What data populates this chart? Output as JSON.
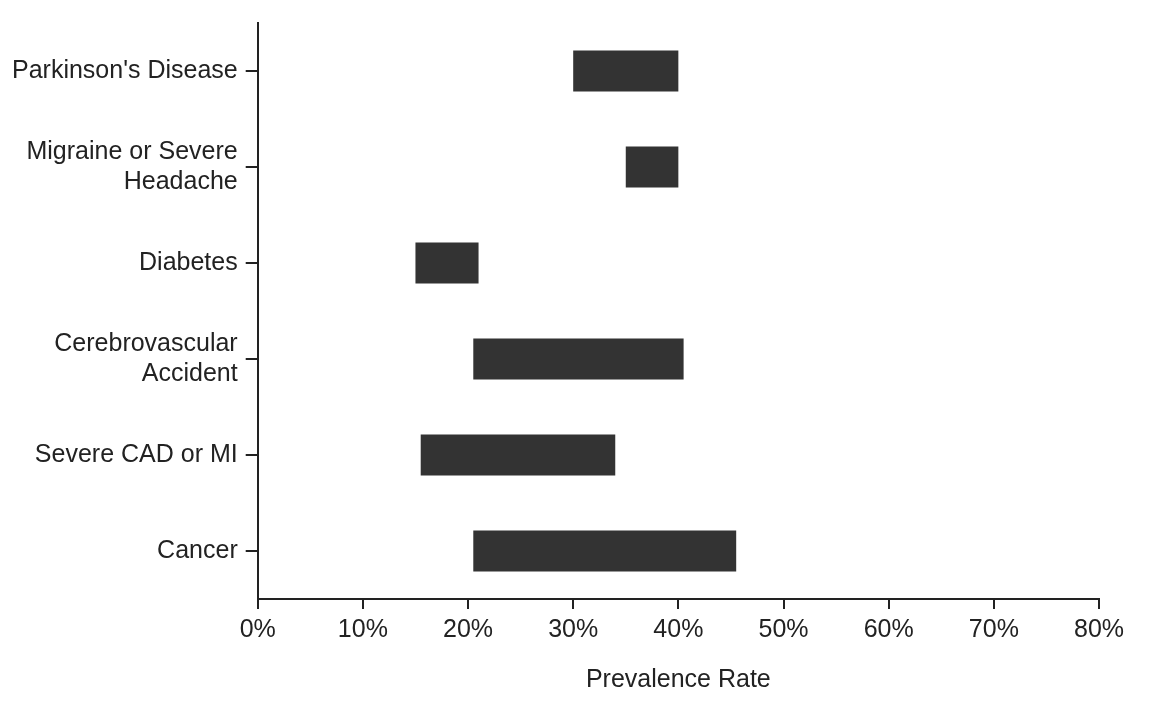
{
  "chart_data": {
    "type": "bar",
    "orientation": "horizontal",
    "xlabel": "Prevalence Rate",
    "categories": [
      "Parkinson's Disease",
      "Migraine or Severe Headache",
      "Diabetes",
      "Cerebrovascular Accident",
      "Severe CAD or MI",
      "Cancer"
    ],
    "base": [
      30,
      35,
      15,
      20.5,
      15.5,
      20.5
    ],
    "values": [
      10,
      5,
      6,
      20,
      18.5,
      25
    ],
    "color": "#333333",
    "xlim": [
      0,
      80
    ],
    "xticks": [
      {
        "value": 0,
        "label": "0%"
      },
      {
        "value": 10,
        "label": "10%"
      },
      {
        "value": 20,
        "label": "20%"
      },
      {
        "value": 30,
        "label": "30%"
      },
      {
        "value": 40,
        "label": "40%"
      },
      {
        "value": 50,
        "label": "50%"
      },
      {
        "value": 60,
        "label": "60%"
      },
      {
        "value": 70,
        "label": "70%"
      },
      {
        "value": 80,
        "label": "80%"
      }
    ],
    "grid": false,
    "legend": false
  }
}
